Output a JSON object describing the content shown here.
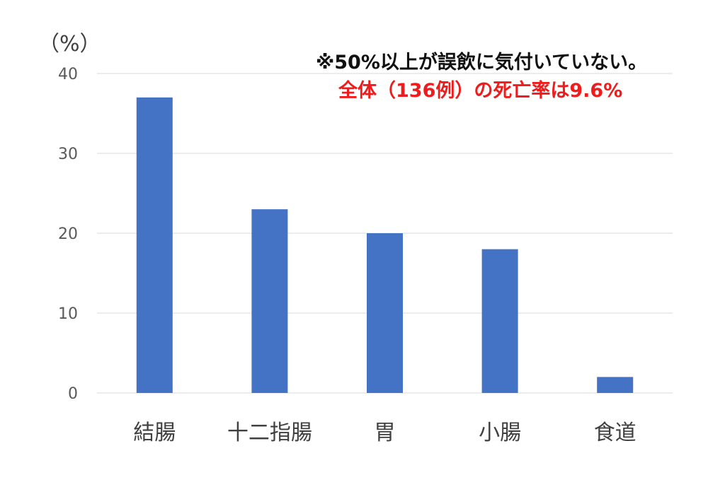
{
  "chart_data": {
    "type": "bar",
    "categories": [
      "結腸",
      "十二指腸",
      "胃",
      "小腸",
      "食道"
    ],
    "values": [
      37,
      23,
      20,
      18,
      2
    ],
    "ylabel": "（%）",
    "ylim": [
      0,
      40
    ],
    "yticks": [
      0,
      10,
      20,
      30,
      40
    ],
    "grid": true,
    "annotations": [
      "※50%以上が誤飲に気付いていない。",
      "全体（136例）の死亡率は9.6%"
    ]
  },
  "colors": {
    "bar": "#4472c4",
    "grid": "#d9d9d9",
    "annotation_primary": "#111111",
    "annotation_highlight": "#ee1c1c"
  }
}
